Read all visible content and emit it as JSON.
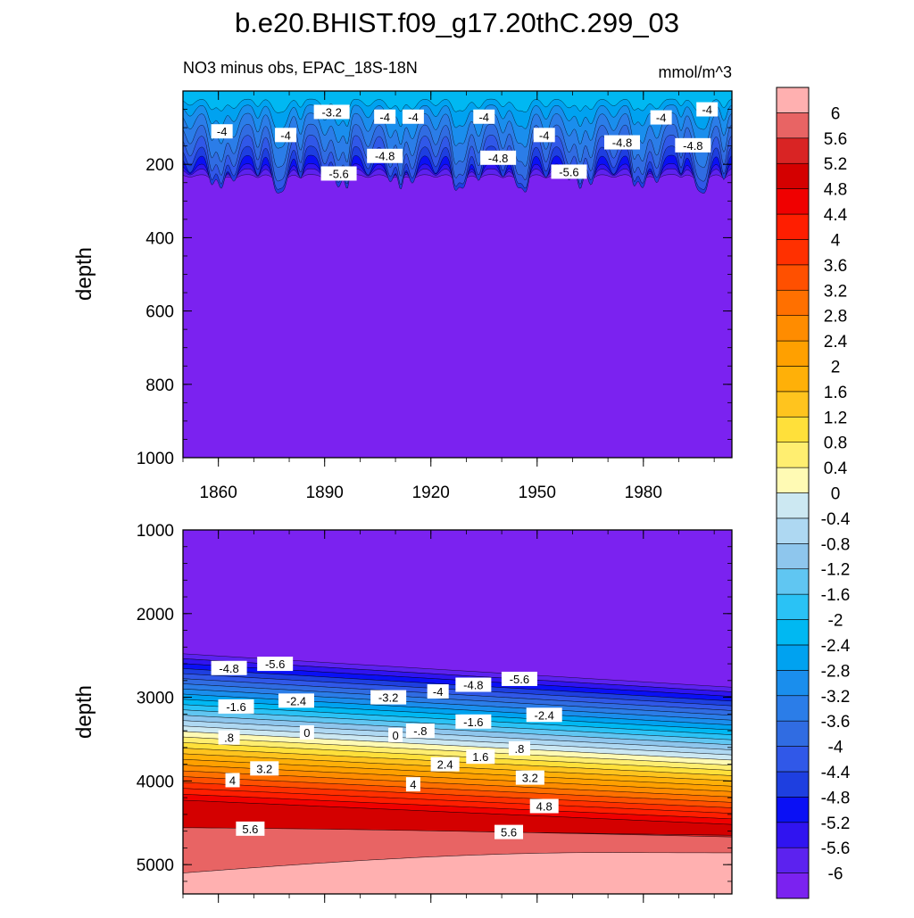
{
  "chart_data": [
    {
      "type": "contour",
      "title": "b.e20.BHIST.f09_g17.20thC.299_03",
      "subtitle_left": "NO3 minus obs, EPAC_18S-18N",
      "subtitle_right": "mmol/m^3",
      "ylabel": "depth",
      "xlabel": "",
      "xlim": [
        1850,
        2005
      ],
      "ylim": [
        1000,
        0
      ],
      "x_ticks": [
        1860,
        1890,
        1920,
        1950,
        1980
      ],
      "x_tick_labels": [
        "1860",
        "1890",
        "1920",
        "1950",
        "1980"
      ],
      "y_ticks": [
        200,
        400,
        600,
        800,
        1000
      ],
      "y_tick_labels": [
        "200",
        "400",
        "600",
        "800",
        "1000"
      ],
      "contour_labels": [
        {
          "text": "-4",
          "x": 1861,
          "y": 110
        },
        {
          "text": "-3.2",
          "x": 1892,
          "y": 57
        },
        {
          "text": "-4",
          "x": 1879,
          "y": 120
        },
        {
          "text": "-4",
          "x": 1907,
          "y": 70
        },
        {
          "text": "-4",
          "x": 1915,
          "y": 70
        },
        {
          "text": "-4.8",
          "x": 1907,
          "y": 177
        },
        {
          "text": "-5.6",
          "x": 1894,
          "y": 225
        },
        {
          "text": "-4",
          "x": 1935,
          "y": 70
        },
        {
          "text": "-4.8",
          "x": 1939,
          "y": 182
        },
        {
          "text": "-4",
          "x": 1952,
          "y": 120
        },
        {
          "text": "-5.6",
          "x": 1959,
          "y": 220
        },
        {
          "text": "-4.8",
          "x": 1974,
          "y": 140
        },
        {
          "text": "-4",
          "x": 1985,
          "y": 72
        },
        {
          "text": "-4",
          "x": 1998,
          "y": 50
        },
        {
          "text": "-4.8",
          "x": 1994,
          "y": 148
        }
      ]
    },
    {
      "type": "contour",
      "ylabel": "depth",
      "xlim": [
        1850,
        2005
      ],
      "ylim": [
        5350,
        1000
      ],
      "y_ticks": [
        1000,
        2000,
        3000,
        4000,
        5000
      ],
      "y_tick_labels": [
        "1000",
        "2000",
        "3000",
        "4000",
        "5000"
      ],
      "contour_labels": [
        {
          "text": "-4.8",
          "x": 1863,
          "y": 2650
        },
        {
          "text": "-5.6",
          "x": 1876,
          "y": 2600
        },
        {
          "text": "-1.6",
          "x": 1865,
          "y": 3110
        },
        {
          "text": "-2.4",
          "x": 1882,
          "y": 3040
        },
        {
          "text": "-3.2",
          "x": 1908,
          "y": 3000
        },
        {
          "text": "-4",
          "x": 1922,
          "y": 2930
        },
        {
          "text": "-4.8",
          "x": 1932,
          "y": 2850
        },
        {
          "text": "-5.6",
          "x": 1945,
          "y": 2780
        },
        {
          "text": ".8",
          "x": 1863,
          "y": 3480
        },
        {
          "text": "0",
          "x": 1885,
          "y": 3420
        },
        {
          "text": "0",
          "x": 1910,
          "y": 3450
        },
        {
          "text": "-.8",
          "x": 1917,
          "y": 3400
        },
        {
          "text": "-1.6",
          "x": 1932,
          "y": 3290
        },
        {
          "text": "-2.4",
          "x": 1952,
          "y": 3210
        },
        {
          "text": "3.2",
          "x": 1873,
          "y": 3850
        },
        {
          "text": "4",
          "x": 1864,
          "y": 3990
        },
        {
          "text": "2.4",
          "x": 1924,
          "y": 3800
        },
        {
          "text": "1.6",
          "x": 1934,
          "y": 3710
        },
        {
          "text": ".8",
          "x": 1945,
          "y": 3610
        },
        {
          "text": "3.2",
          "x": 1948,
          "y": 3960
        },
        {
          "text": "4",
          "x": 1915,
          "y": 4040
        },
        {
          "text": "4.8",
          "x": 1952,
          "y": 4300
        },
        {
          "text": "5.6",
          "x": 1869,
          "y": 4570
        },
        {
          "text": "5.6",
          "x": 1942,
          "y": 4610
        }
      ]
    }
  ],
  "colorbar": {
    "levels": [
      -6,
      -5.6,
      -5.2,
      -4.8,
      -4.4,
      -4,
      -3.6,
      -3.2,
      -2.8,
      -2.4,
      -2,
      -1.6,
      -1.2,
      -0.8,
      -0.4,
      0,
      0.4,
      0.8,
      1.2,
      1.6,
      2,
      2.4,
      2.8,
      3.2,
      3.6,
      4,
      4.4,
      4.8,
      5.2,
      5.6,
      6
    ],
    "labels": [
      "-6",
      "-5.6",
      "-5.2",
      "-4.8",
      "-4.4",
      "-4",
      "-3.6",
      "-3.2",
      "-2.8",
      "-2.4",
      "-2",
      "-1.6",
      "-1.2",
      "-0.8",
      "-0.4",
      "0",
      "0.4",
      "0.8",
      "1.2",
      "1.6",
      "2",
      "2.4",
      "2.8",
      "3.2",
      "3.6",
      "4",
      "4.4",
      "4.8",
      "5.2",
      "5.6",
      "6"
    ],
    "colors": [
      "#7b22f0",
      "#5c22ef",
      "#3014f0",
      "#0a10f5",
      "#1e3fe0",
      "#3058e8",
      "#306ce2",
      "#2b7de8",
      "#1a8eed",
      "#00a2f0",
      "#00b8f2",
      "#2ac2f5",
      "#60c6f2",
      "#8ec6ed",
      "#aed8f2",
      "#cce8f2",
      "#fffab4",
      "#ffee70",
      "#ffe03a",
      "#ffc41e",
      "#ffb008",
      "#ffa000",
      "#ff8c00",
      "#ff7000",
      "#ff5000",
      "#ff3000",
      "#ff1e00",
      "#f00000",
      "#d40000",
      "#d92424",
      "#e86464",
      "#ffb0b0"
    ]
  }
}
